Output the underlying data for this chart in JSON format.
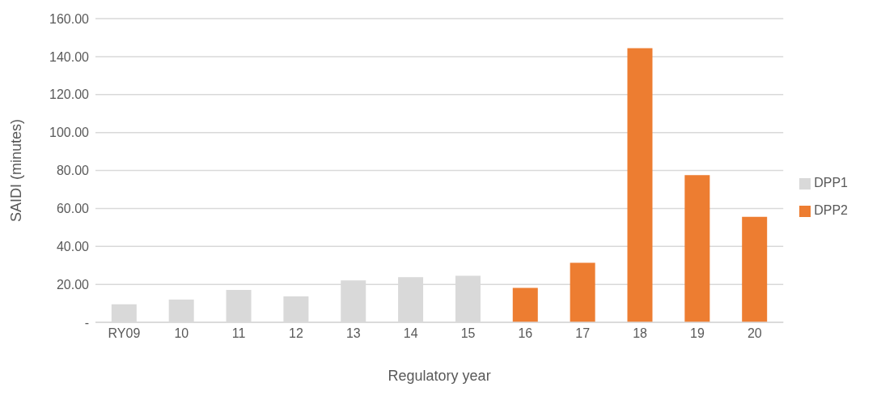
{
  "chart_data": {
    "type": "bar",
    "xlabel": "Regulatory year",
    "ylabel": "SAIDI (minutes)",
    "categories": [
      "RY09",
      "10",
      "11",
      "12",
      "13",
      "14",
      "15",
      "16",
      "17",
      "18",
      "19",
      "20"
    ],
    "series": [
      {
        "name": "DPP1",
        "color": "#d9d9d9",
        "values": [
          9.5,
          12.0,
          17.1,
          13.7,
          22.1,
          23.8,
          24.5,
          null,
          null,
          null,
          null,
          null
        ]
      },
      {
        "name": "DPP2",
        "color": "#ed7d31",
        "values": [
          null,
          null,
          null,
          null,
          null,
          null,
          null,
          18.1,
          31.4,
          144.4,
          77.5,
          55.6
        ]
      }
    ],
    "stacked": true,
    "ylim": [
      0,
      160
    ],
    "yticks": [
      {
        "value": 0,
        "label": "-"
      },
      {
        "value": 20,
        "label": "20.00"
      },
      {
        "value": 40,
        "label": "40.00"
      },
      {
        "value": 60,
        "label": "60.00"
      },
      {
        "value": 80,
        "label": "80.00"
      },
      {
        "value": 100,
        "label": "100.00"
      },
      {
        "value": 120,
        "label": "120.00"
      },
      {
        "value": 140,
        "label": "140.00"
      },
      {
        "value": 160,
        "label": "160.00"
      }
    ],
    "grid": "y",
    "legend": "right"
  }
}
